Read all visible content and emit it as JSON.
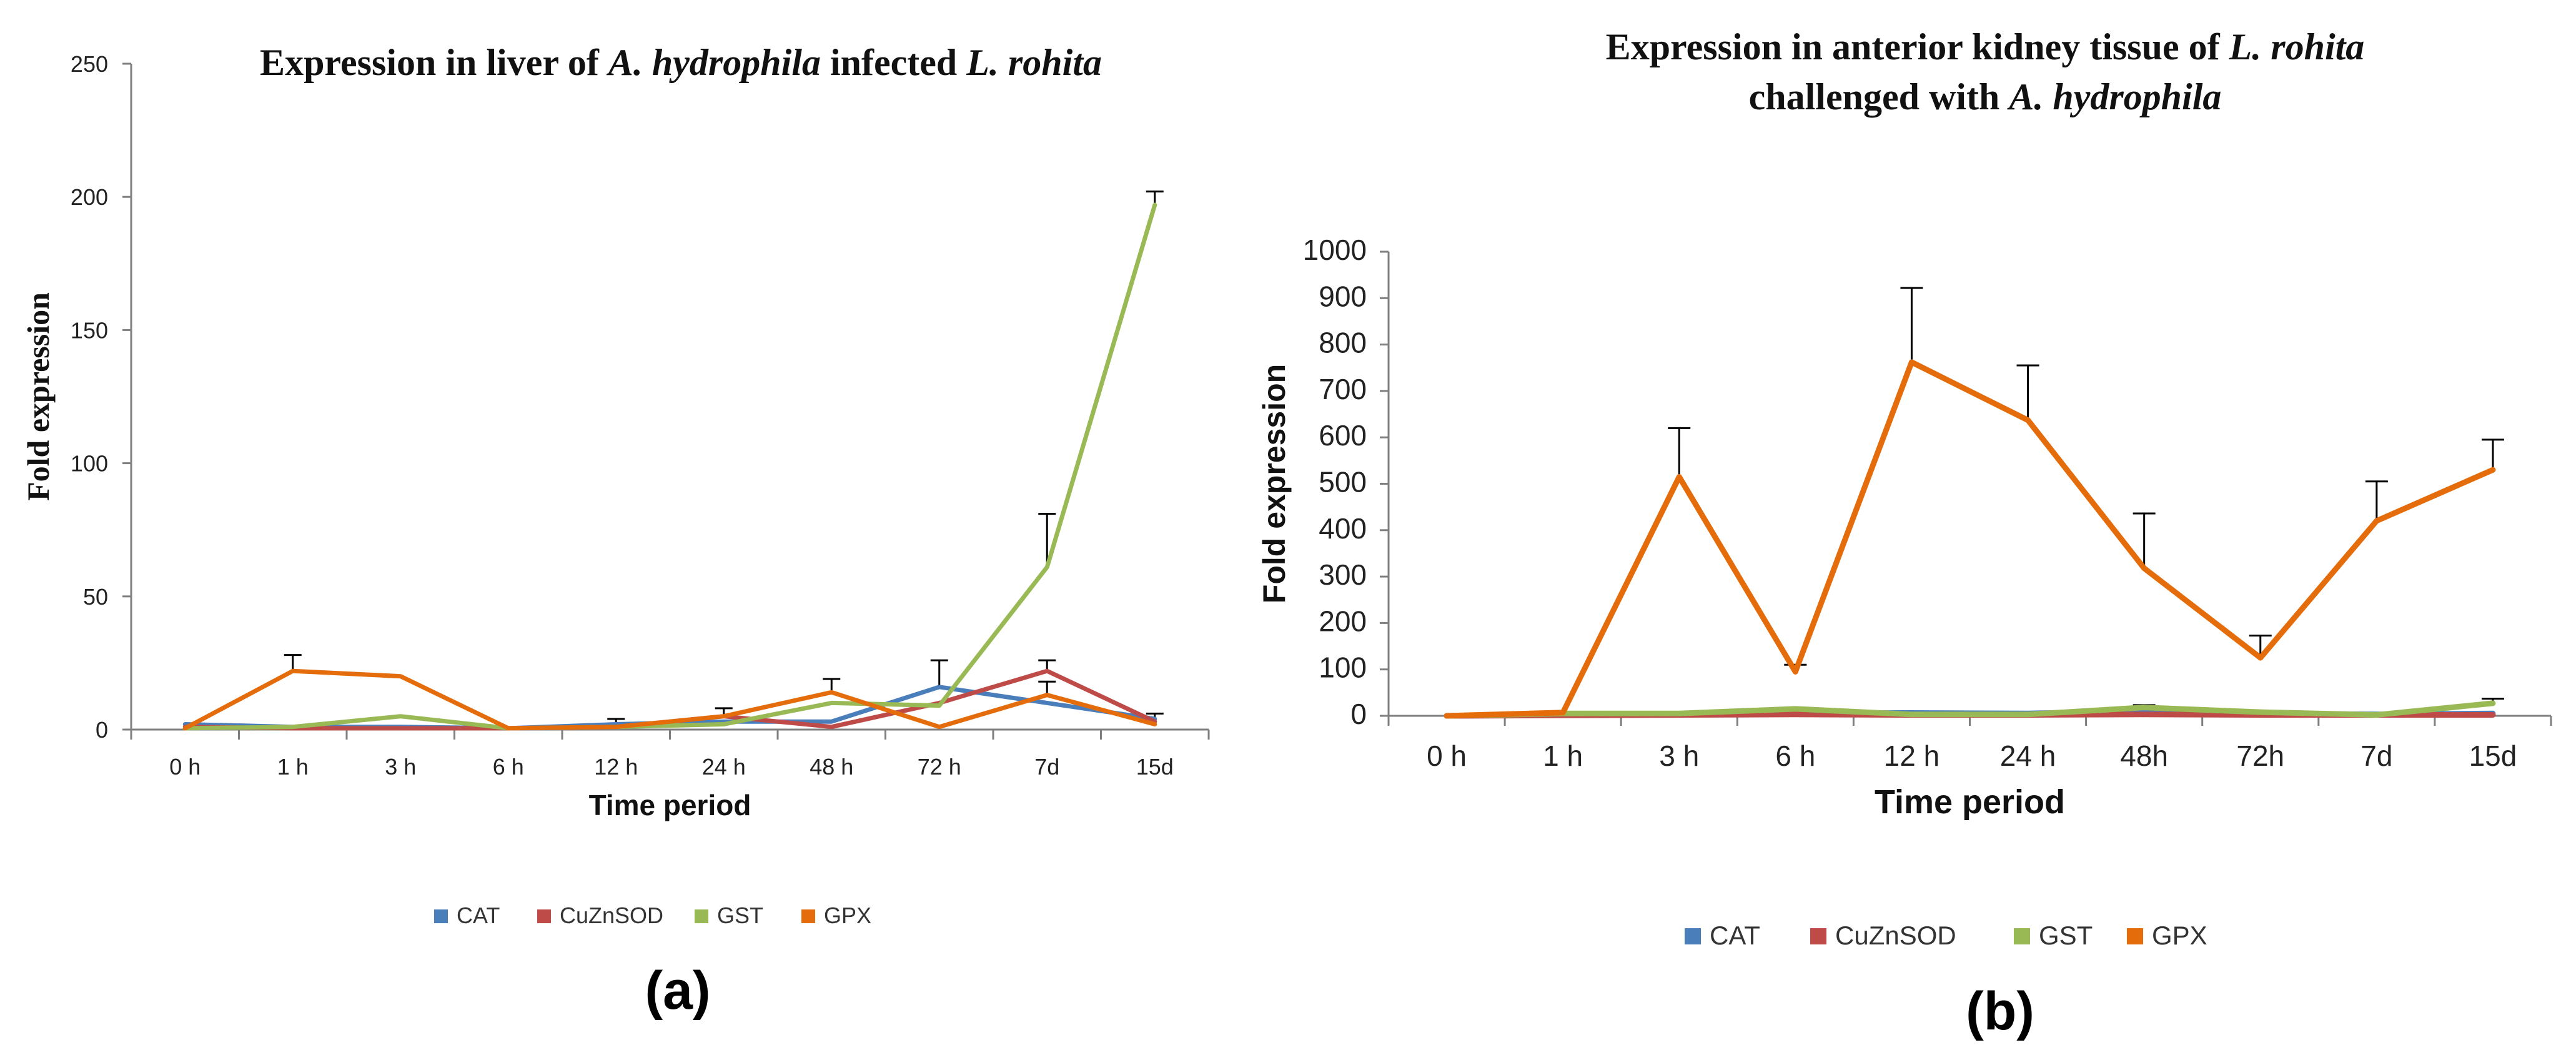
{
  "colors": {
    "CAT": "#4a7ebb",
    "CuZnSOD": "#be4b48",
    "GST": "#98b954",
    "GPX": "#e46c0a",
    "axis": "#7f7f7f",
    "errorbar": "#000000"
  },
  "chart_data": [
    {
      "id": "a",
      "type": "line",
      "panel_label": "(a)",
      "title_parts": [
        {
          "text": "Expression in liver of ",
          "italic": false
        },
        {
          "text": "A. hydrophila",
          "italic": true
        },
        {
          "text": " infected ",
          "italic": false
        },
        {
          "text": "L. rohita",
          "italic": true
        }
      ],
      "xlabel": "Time period",
      "ylabel": "Fold expression",
      "ylim": [
        0,
        250
      ],
      "yticks": [
        "0",
        "50",
        "100",
        "150",
        "200",
        "250"
      ],
      "categories": [
        "0 h",
        "1 h",
        "3 h",
        "6 h",
        "12 h",
        "24 h",
        "48 h",
        "72 h",
        "7d",
        "15d"
      ],
      "legend_position": "bottom",
      "series": [
        {
          "name": "CAT",
          "values": [
            2,
            1,
            1,
            0.5,
            2,
            3,
            3,
            16,
            10,
            4
          ],
          "errors": [
            0,
            0,
            0,
            0,
            2,
            0,
            0,
            10,
            0,
            2
          ]
        },
        {
          "name": "CuZnSOD",
          "values": [
            1,
            0.5,
            0.5,
            0.5,
            1,
            5,
            1,
            10,
            22,
            3
          ],
          "errors": [
            0,
            0,
            0,
            0,
            0,
            0,
            0,
            0,
            4,
            0
          ]
        },
        {
          "name": "GST",
          "values": [
            0.5,
            1,
            5,
            0.5,
            1,
            2,
            10,
            9,
            61,
            197
          ],
          "errors": [
            0,
            0,
            0,
            0,
            0,
            0,
            0,
            0,
            20,
            5
          ]
        },
        {
          "name": "GPX",
          "values": [
            0.5,
            22,
            20,
            0.5,
            1,
            5,
            14,
            1,
            13,
            2
          ],
          "errors": [
            0,
            6,
            0,
            0,
            0,
            3,
            5,
            0,
            5,
            0
          ]
        }
      ]
    },
    {
      "id": "b",
      "type": "line",
      "panel_label": "(b)",
      "title_lines": [
        [
          {
            "text": "Expression in anterior kidney tissue of ",
            "italic": false
          },
          {
            "text": "L. rohita",
            "italic": true
          }
        ],
        [
          {
            "text": "challenged with ",
            "italic": false
          },
          {
            "text": "A. hydrophila",
            "italic": true
          }
        ]
      ],
      "xlabel": "Time period",
      "ylabel": "Fold expression",
      "ylim": [
        0,
        1000
      ],
      "yticks": [
        "0",
        "100",
        "200",
        "300",
        "400",
        "500",
        "600",
        "700",
        "800",
        "900",
        "1000"
      ],
      "categories": [
        "0 h",
        "1 h",
        "3 h",
        "6 h",
        "12 h",
        "24 h",
        "48h",
        "72h",
        "7d",
        "15d"
      ],
      "legend_position": "bottom",
      "series": [
        {
          "name": "CAT",
          "values": [
            0,
            2,
            3,
            5,
            6,
            5,
            10,
            5,
            3,
            5
          ],
          "errors": [
            0,
            0,
            0,
            0,
            0,
            0,
            0,
            0,
            0,
            0
          ]
        },
        {
          "name": "CuZnSOD",
          "values": [
            0,
            1,
            2,
            3,
            2,
            2,
            3,
            2,
            2,
            2
          ],
          "errors": [
            0,
            0,
            0,
            0,
            0,
            0,
            0,
            0,
            0,
            0
          ]
        },
        {
          "name": "GST",
          "values": [
            0,
            5,
            5,
            15,
            3,
            3,
            18,
            8,
            2,
            27
          ],
          "errors": [
            0,
            0,
            0,
            0,
            0,
            0,
            5,
            0,
            0,
            10
          ]
        },
        {
          "name": "GPX",
          "values": [
            0,
            7,
            515,
            95,
            762,
            637,
            318,
            125,
            420,
            530
          ],
          "errors": [
            0,
            0,
            105,
            15,
            160,
            118,
            118,
            48,
            85,
            65
          ]
        }
      ]
    }
  ]
}
